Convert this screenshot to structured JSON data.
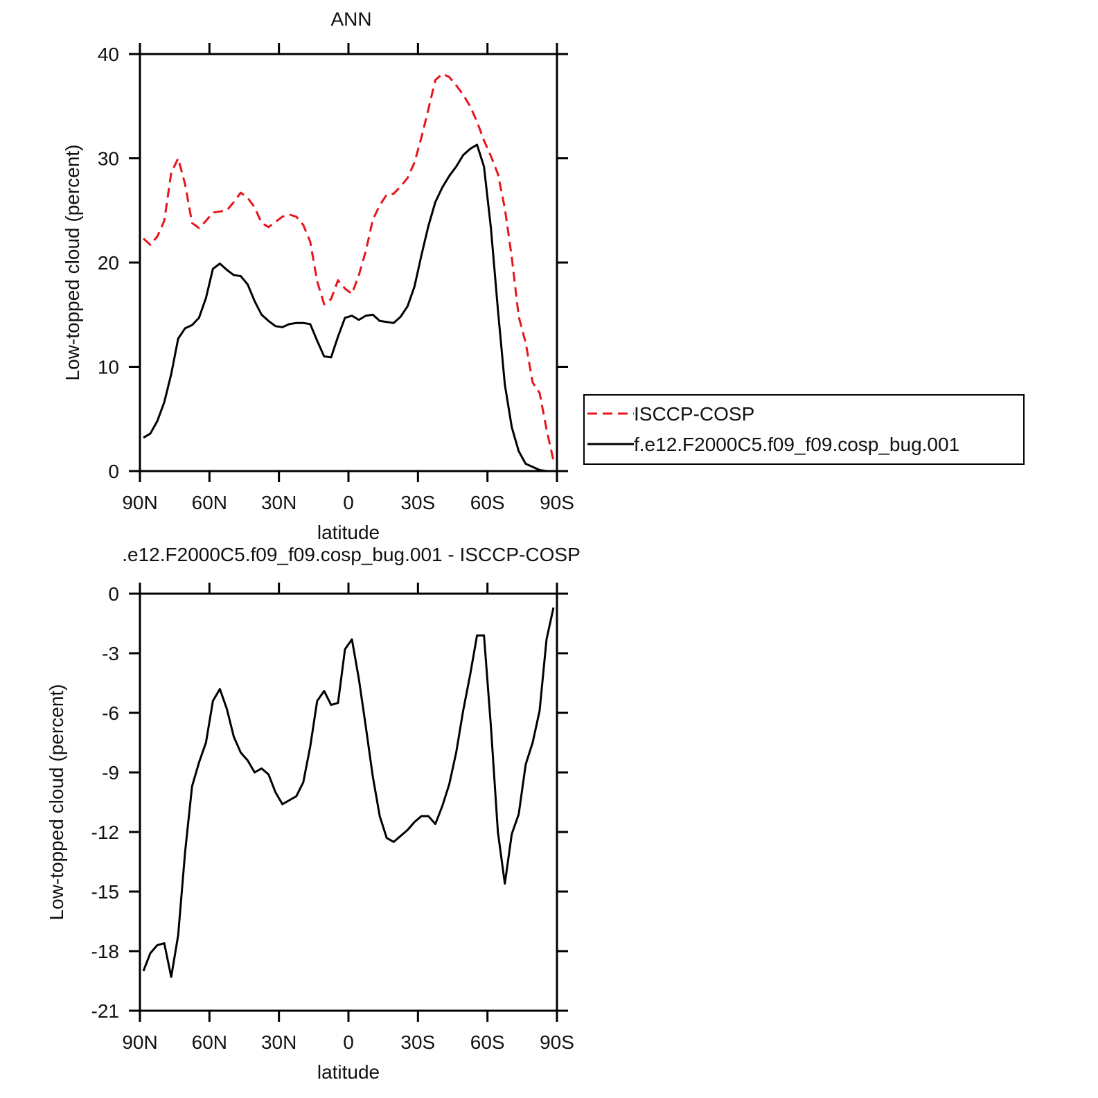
{
  "chart_data": [
    {
      "type": "line",
      "title": "ANN",
      "xlabel": "latitude",
      "ylabel": "Low-topped cloud (percent)",
      "xlim": [
        90,
        -90
      ],
      "xticks": [
        {
          "value": 90,
          "label": "90N"
        },
        {
          "value": 60,
          "label": "60N"
        },
        {
          "value": 30,
          "label": "30N"
        },
        0,
        {
          "value": -30,
          "label": "30S"
        },
        {
          "value": -60,
          "label": "60S"
        },
        {
          "value": -90,
          "label": "90S"
        }
      ],
      "ylim": [
        0,
        40
      ],
      "yticks": [
        0,
        10,
        20,
        30,
        40
      ],
      "legend": "right",
      "x": [
        88.5,
        85.5,
        82.5,
        79.5,
        76.5,
        73.5,
        70.5,
        67.5,
        64.5,
        61.5,
        58.5,
        55.5,
        52.5,
        49.5,
        46.5,
        43.5,
        40.5,
        37.5,
        34.5,
        31.5,
        28.5,
        25.5,
        22.5,
        19.5,
        16.5,
        13.5,
        10.5,
        7.5,
        4.5,
        1.5,
        -1.5,
        -4.5,
        -7.5,
        -10.5,
        -13.5,
        -16.5,
        -19.5,
        -22.5,
        -25.5,
        -28.5,
        -31.5,
        -34.5,
        -37.5,
        -40.5,
        -43.5,
        -46.5,
        -49.5,
        -52.5,
        -55.5,
        -58.5,
        -61.5,
        -64.5,
        -67.5,
        -70.5,
        -73.5,
        -76.5,
        -79.5,
        -82.5,
        -85.5,
        -88.5
      ],
      "series": [
        {
          "name": "ISCCP-COSP",
          "color": "#e8141c",
          "linestyle": "dashed",
          "values": [
            22.3,
            21.7,
            22.5,
            24.0,
            28.6,
            30.0,
            27.5,
            23.8,
            23.3,
            24.0,
            24.8,
            24.9,
            25.0,
            25.8,
            26.7,
            26.2,
            25.3,
            23.8,
            23.4,
            23.9,
            24.4,
            24.6,
            24.4,
            23.6,
            22.0,
            18.2,
            16.0,
            16.5,
            18.3,
            17.5,
            17.0,
            18.8,
            21.1,
            24.1,
            25.5,
            26.5,
            26.6,
            27.3,
            28.1,
            29.6,
            32.0,
            34.7,
            37.5,
            38.1,
            37.8,
            37.0,
            36.1,
            35.0,
            33.5,
            31.7,
            30.2,
            28.5,
            25.2,
            20.5,
            14.8,
            12.3,
            8.5,
            7.5,
            4.0,
            1.0
          ]
        },
        {
          "name": "f.e12.F2000C5.f09_f09.cosp_bug.001",
          "color": "#000000",
          "linestyle": "solid",
          "values": [
            3.2,
            3.6,
            4.8,
            6.6,
            9.3,
            12.7,
            13.7,
            14.0,
            14.7,
            16.6,
            19.4,
            19.9,
            19.3,
            18.8,
            18.7,
            17.9,
            16.3,
            15.0,
            14.4,
            13.9,
            13.8,
            14.1,
            14.2,
            14.2,
            14.1,
            12.5,
            11.0,
            10.9,
            12.9,
            14.7,
            14.9,
            14.5,
            14.9,
            15.0,
            14.4,
            14.3,
            14.2,
            14.8,
            15.8,
            17.7,
            20.7,
            23.5,
            25.8,
            27.2,
            28.3,
            29.2,
            30.3,
            30.9,
            31.3,
            29.2,
            23.3,
            15.5,
            8.3,
            4.2,
            1.9,
            0.7,
            0.4,
            0.1,
            0,
            0
          ]
        }
      ]
    },
    {
      "type": "line",
      "title": ".e12.F2000C5.f09_f09.cosp_bug.001 - ISCCP-COSP",
      "xlabel": "latitude",
      "ylabel": "Low-topped cloud (percent)",
      "xlim": [
        90,
        -90
      ],
      "xticks": [
        {
          "value": 90,
          "label": "90N"
        },
        {
          "value": 60,
          "label": "60N"
        },
        {
          "value": 30,
          "label": "30N"
        },
        0,
        {
          "value": -30,
          "label": "30S"
        },
        {
          "value": -60,
          "label": "60S"
        },
        {
          "value": -90,
          "label": "90S"
        }
      ],
      "ylim": [
        -21,
        0
      ],
      "yticks": [
        0,
        -3,
        -6,
        -9,
        -12,
        -15,
        -18,
        -21
      ],
      "x": [
        88.5,
        85.5,
        82.5,
        79.5,
        76.5,
        73.5,
        70.5,
        67.5,
        64.5,
        61.5,
        58.5,
        55.5,
        52.5,
        49.5,
        46.5,
        43.5,
        40.5,
        37.5,
        34.5,
        31.5,
        28.5,
        25.5,
        22.5,
        19.5,
        16.5,
        13.5,
        10.5,
        7.5,
        4.5,
        1.5,
        -1.5,
        -4.5,
        -7.5,
        -10.5,
        -13.5,
        -16.5,
        -19.5,
        -22.5,
        -25.5,
        -28.5,
        -31.5,
        -34.5,
        -37.5,
        -40.5,
        -43.5,
        -46.5,
        -49.5,
        -52.5,
        -55.5,
        -58.5,
        -61.5,
        -64.5,
        -67.5,
        -70.5,
        -73.5,
        -76.5,
        -79.5,
        -82.5,
        -85.5,
        -88.5
      ],
      "color": "#000000",
      "linestyle": "solid",
      "values": [
        -19.0,
        -18.1,
        -17.7,
        -17.6,
        -19.3,
        -17.2,
        -13.0,
        -9.7,
        -8.5,
        -7.5,
        -5.4,
        -4.8,
        -5.8,
        -7.2,
        -8.0,
        -8.4,
        -9.0,
        -8.8,
        -9.1,
        -10.0,
        -10.6,
        -10.4,
        -10.2,
        -9.5,
        -7.7,
        -5.4,
        -4.9,
        -5.6,
        -5.5,
        -2.8,
        -2.3,
        -4.3,
        -6.7,
        -9.2,
        -11.2,
        -12.3,
        -12.5,
        -12.2,
        -11.9,
        -11.5,
        -11.2,
        -11.2,
        -11.6,
        -10.7,
        -9.6,
        -8.0,
        -5.9,
        -4.1,
        -2.1,
        -2.1,
        -6.7,
        -12.0,
        -14.6,
        -12.1,
        -11.1,
        -8.6,
        -7.5,
        -5.9,
        -2.3,
        -0.7
      ]
    }
  ]
}
